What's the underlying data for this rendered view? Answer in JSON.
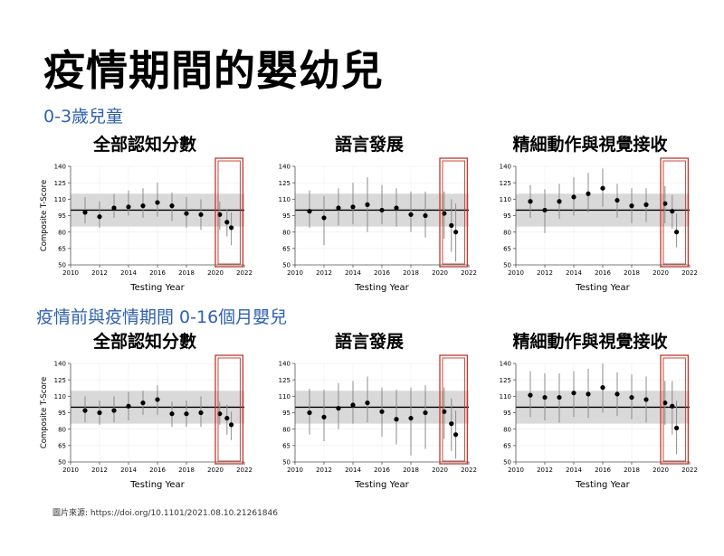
{
  "slide": {
    "title": "疫情期間的嬰幼兒",
    "section1": "0-3歲兒童",
    "section2": "疫情前與疫情期間 0-16個月嬰兒",
    "source": "圖片來源: https://doi.org/10.1101/2021.08.10.21261846"
  },
  "highlight_color": "#c0392b",
  "chart_data": [
    {
      "type": "scatter",
      "title": "全部認知分數",
      "xlabel": "Testing Year",
      "ylabel": "Composite T-Score",
      "xlim": [
        2010,
        2022
      ],
      "ylim": [
        50,
        140
      ],
      "xticks": [
        2010,
        2012,
        2014,
        2016,
        2018,
        2020,
        2022
      ],
      "yticks": [
        50,
        65,
        80,
        95,
        110,
        125,
        140
      ],
      "reference_line": 100,
      "reference_band": [
        85,
        115
      ],
      "x": [
        2011,
        2012,
        2013,
        2014,
        2015,
        2016,
        2017,
        2018,
        2019,
        2020.3,
        2020.8,
        2021.1
      ],
      "y": [
        98,
        94,
        102,
        103,
        104,
        107,
        104,
        97,
        96,
        96,
        89,
        84
      ],
      "err_low": [
        88,
        84,
        93,
        95,
        93,
        94,
        90,
        84,
        82,
        82,
        76,
        68
      ],
      "err_high": [
        112,
        108,
        115,
        118,
        120,
        125,
        116,
        112,
        110,
        108,
        101,
        98
      ]
    },
    {
      "type": "scatter",
      "title": "語言發展",
      "xlabel": "Testing Year",
      "ylabel": "",
      "xlim": [
        2010,
        2022
      ],
      "ylim": [
        50,
        140
      ],
      "xticks": [
        2010,
        2012,
        2014,
        2016,
        2018,
        2020,
        2022
      ],
      "yticks": [
        50,
        65,
        80,
        95,
        110,
        125,
        140
      ],
      "reference_line": 100,
      "reference_band": [
        85,
        115
      ],
      "x": [
        2011,
        2012,
        2013,
        2014,
        2015,
        2016,
        2017,
        2018,
        2019,
        2020.3,
        2020.8,
        2021.1
      ],
      "y": [
        99,
        93,
        102,
        103,
        105,
        100,
        102,
        96,
        95,
        97,
        86,
        80
      ],
      "err_low": [
        84,
        68,
        86,
        87,
        80,
        87,
        85,
        80,
        75,
        74,
        62,
        53
      ],
      "err_high": [
        118,
        113,
        120,
        125,
        130,
        123,
        120,
        117,
        117,
        117,
        110,
        106
      ]
    },
    {
      "type": "scatter",
      "title": "精細動作與視覺接收",
      "xlabel": "Testing Year",
      "ylabel": "",
      "xlim": [
        2010,
        2022
      ],
      "ylim": [
        50,
        140
      ],
      "xticks": [
        2010,
        2012,
        2014,
        2016,
        2018,
        2020,
        2022
      ],
      "yticks": [
        50,
        65,
        80,
        95,
        110,
        125,
        140
      ],
      "reference_line": 100,
      "reference_band": [
        85,
        115
      ],
      "x": [
        2011,
        2012,
        2013,
        2014,
        2015,
        2016,
        2017,
        2018,
        2019,
        2020.3,
        2020.8,
        2021.1
      ],
      "y": [
        108,
        100,
        108,
        112,
        115,
        120,
        109,
        104,
        105,
        106,
        99,
        80
      ],
      "err_low": [
        93,
        79,
        92,
        95,
        98,
        103,
        93,
        88,
        89,
        88,
        83,
        66
      ],
      "err_high": [
        123,
        119,
        124,
        130,
        134,
        138,
        124,
        120,
        120,
        122,
        114,
        97
      ]
    },
    {
      "type": "scatter",
      "title": "全部認知分數",
      "xlabel": "Testing Year",
      "ylabel": "Composite T-Score",
      "xlim": [
        2010,
        2022
      ],
      "ylim": [
        50,
        140
      ],
      "xticks": [
        2010,
        2012,
        2014,
        2016,
        2018,
        2020,
        2022
      ],
      "yticks": [
        50,
        65,
        80,
        95,
        110,
        125,
        140
      ],
      "reference_line": 100,
      "reference_band": [
        85,
        115
      ],
      "x": [
        2011,
        2012,
        2013,
        2014,
        2015,
        2016,
        2017,
        2018,
        2019,
        2020.3,
        2020.8,
        2021.1
      ],
      "y": [
        97,
        95,
        97,
        101,
        104,
        107,
        94,
        94,
        95,
        94,
        90,
        84
      ],
      "err_low": [
        86,
        84,
        86,
        88,
        93,
        93,
        82,
        82,
        82,
        84,
        75,
        70
      ],
      "err_high": [
        110,
        106,
        110,
        114,
        115,
        120,
        105,
        106,
        110,
        105,
        102,
        96
      ]
    },
    {
      "type": "scatter",
      "title": "語言發展",
      "xlabel": "Testing Year",
      "ylabel": "",
      "xlim": [
        2010,
        2022
      ],
      "ylim": [
        50,
        140
      ],
      "xticks": [
        2010,
        2012,
        2014,
        2016,
        2018,
        2020,
        2022
      ],
      "yticks": [
        50,
        65,
        80,
        95,
        110,
        125,
        140
      ],
      "reference_line": 100,
      "reference_band": [
        85,
        115
      ],
      "x": [
        2011,
        2012,
        2013,
        2014,
        2015,
        2016,
        2017,
        2018,
        2019,
        2020.3,
        2020.8,
        2021.1
      ],
      "y": [
        95,
        91,
        99,
        102,
        104,
        96,
        89,
        90,
        95,
        96,
        85,
        75
      ],
      "err_low": [
        75,
        69,
        80,
        85,
        86,
        73,
        66,
        56,
        62,
        71,
        60,
        53
      ],
      "err_high": [
        117,
        116,
        122,
        124,
        128,
        118,
        116,
        118,
        120,
        118,
        108,
        97
      ]
    },
    {
      "type": "scatter",
      "title": "精細動作與視覺接收",
      "xlabel": "Testing Year",
      "ylabel": "",
      "xlim": [
        2010,
        2022
      ],
      "ylim": [
        50,
        140
      ],
      "xticks": [
        2010,
        2012,
        2014,
        2016,
        2018,
        2020,
        2022
      ],
      "yticks": [
        50,
        65,
        80,
        95,
        110,
        125,
        140
      ],
      "reference_line": 100,
      "reference_band": [
        85,
        115
      ],
      "x": [
        2011,
        2012,
        2013,
        2014,
        2015,
        2016,
        2017,
        2018,
        2019,
        2020.3,
        2020.8,
        2021.1
      ],
      "y": [
        111,
        109,
        109,
        113,
        112,
        118,
        112,
        109,
        107,
        104,
        101,
        81
      ],
      "err_low": [
        91,
        88,
        86,
        91,
        90,
        95,
        92,
        89,
        86,
        84,
        75,
        57
      ],
      "err_high": [
        133,
        131,
        131,
        133,
        135,
        140,
        132,
        130,
        128,
        124,
        124,
        106
      ]
    }
  ]
}
